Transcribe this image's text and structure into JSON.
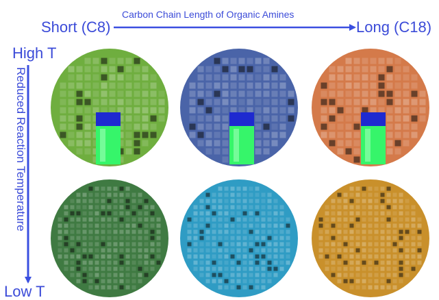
{
  "header": {
    "left_label": "Short (C8)",
    "axis_title": "Carbon Chain Length of Organic Amines",
    "right_label": "Long (C18)"
  },
  "side": {
    "top_label": "High T",
    "axis_title": "Reduced Reaction Temperature",
    "bottom_label": "Low T"
  },
  "colors": {
    "label_blue": "#3b4bd8",
    "arrow_blue": "#3a4fe0",
    "row1": [
      "#6fae3f",
      "#4a64a8",
      "#d47a4a"
    ],
    "row2": [
      "#3f7a42",
      "#2f9cc4",
      "#c9902b"
    ],
    "vial_glow": "#36f56a",
    "vial_cap": "#1e2ad0"
  },
  "panels": {
    "row1": [
      {
        "id": "c8-high",
        "vial": true
      },
      {
        "id": "c12-high",
        "vial": true
      },
      {
        "id": "c18-high",
        "vial": true
      }
    ],
    "row2": [
      {
        "id": "c8-low",
        "vial": false
      },
      {
        "id": "c12-low",
        "vial": false
      },
      {
        "id": "c18-low",
        "vial": false
      }
    ]
  }
}
